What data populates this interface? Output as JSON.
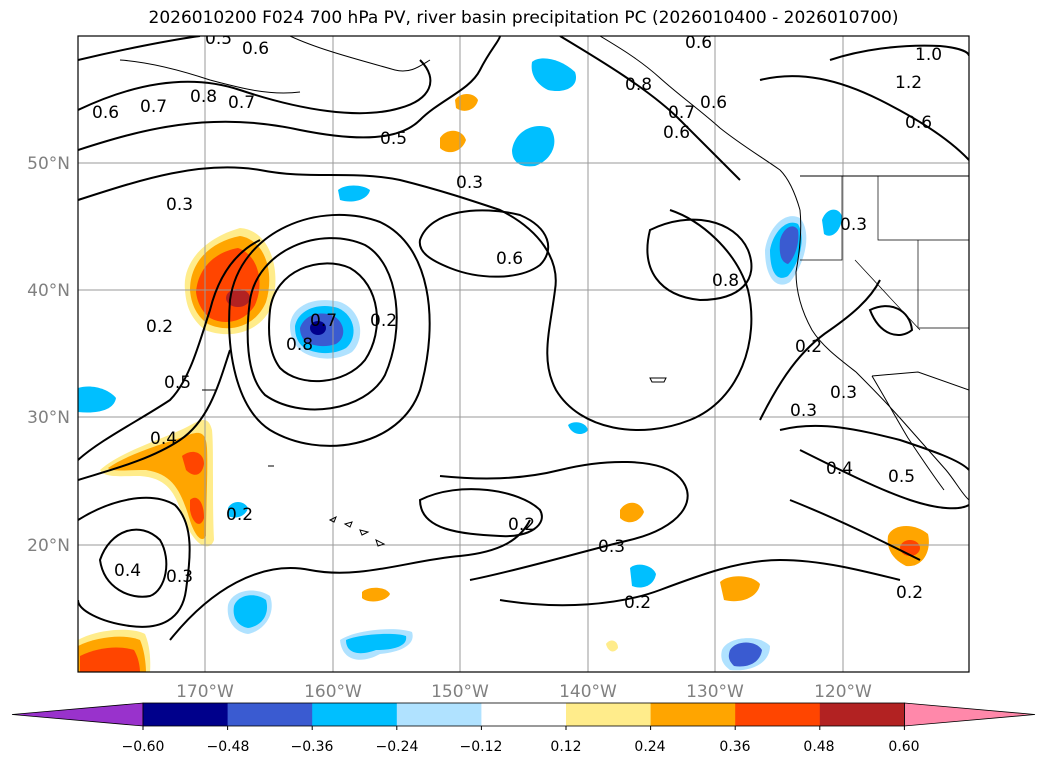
{
  "title": "2026010200 F024 700 hPa PV, river basin precipitation PC (2026010400 - 2026010700)",
  "map": {
    "lat_labels": [
      "50°N",
      "40°N",
      "30°N",
      "20°N"
    ],
    "lon_labels": [
      "170°W",
      "160°W",
      "150°W",
      "140°W",
      "130°W",
      "120°W"
    ],
    "axis_label_color": "#808080",
    "grid": true,
    "contour_color": "#000000",
    "contour_labels": [
      "0.5",
      "0.6",
      "0.6",
      "1.0",
      "1.2",
      "0.6",
      "0.7",
      "0.8",
      "0.7",
      "0.8",
      "0.6",
      "0.5",
      "0.3",
      "0.3",
      "0.6",
      "0.8",
      "0.3",
      "0.3",
      "0.2",
      "0.8",
      "0.7",
      "0.2",
      "0.2",
      "0.5",
      "0.4",
      "0.3",
      "0.2",
      "0.4",
      "0.3",
      "0.2",
      "0.2",
      "0.3",
      "0.4",
      "0.5",
      "0.2",
      "0.6",
      "0.6",
      "0.7"
    ]
  },
  "colorbar": {
    "ticks": [
      "−0.60",
      "−0.48",
      "−0.36",
      "−0.24",
      "−0.12",
      "0.12",
      "0.24",
      "0.36",
      "0.48",
      "0.60"
    ],
    "colors": [
      "#9932cc",
      "#00008b",
      "#3a5bd1",
      "#00bfff",
      "#b0e2ff",
      "#ffffff",
      "#ffec8b",
      "#ffa500",
      "#ff4500",
      "#b22222",
      "#ff88aa"
    ]
  },
  "features": {
    "precip_blobs": [
      {
        "name": "red-blob-north-pacific",
        "sign": "positive"
      },
      {
        "name": "blue-blob-central-pacific",
        "sign": "negative"
      },
      {
        "name": "blue-blob-oregon-coast",
        "sign": "negative"
      },
      {
        "name": "orange-band-hawaii-west",
        "sign": "positive"
      }
    ]
  }
}
